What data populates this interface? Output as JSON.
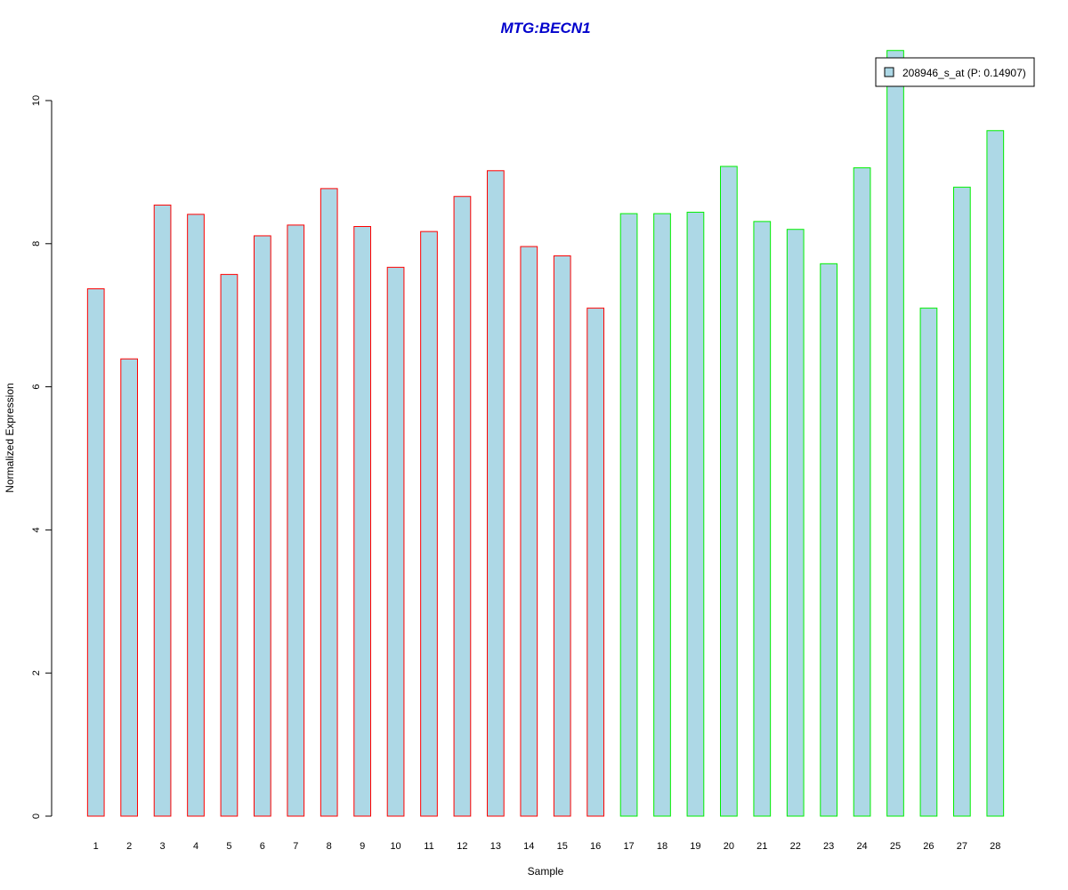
{
  "chart_data": {
    "type": "bar",
    "title": "MTG:BECN1",
    "xlabel": "Sample",
    "ylabel": "Normalized Expression",
    "categories": [
      "1",
      "2",
      "3",
      "4",
      "5",
      "6",
      "7",
      "8",
      "9",
      "10",
      "11",
      "12",
      "13",
      "14",
      "15",
      "16",
      "17",
      "18",
      "19",
      "20",
      "21",
      "22",
      "23",
      "24",
      "25",
      "26",
      "27",
      "28"
    ],
    "series": [
      {
        "name": "208946_s_at (P: 0.14907)",
        "values": [
          7.37,
          6.39,
          8.54,
          8.41,
          7.57,
          8.11,
          8.26,
          8.77,
          8.24,
          7.67,
          8.17,
          8.66,
          9.02,
          7.96,
          7.83,
          7.1,
          8.42,
          8.42,
          8.44,
          9.08,
          8.31,
          8.2,
          7.72,
          9.06,
          10.7,
          7.1,
          8.79,
          9.58
        ]
      }
    ],
    "groups": [
      {
        "from": 1,
        "to": 16,
        "border_color": "#ff0000"
      },
      {
        "from": 17,
        "to": 28,
        "border_color": "#00ee00"
      }
    ],
    "ylim": [
      0,
      10
    ],
    "yticks": [
      0,
      2,
      4,
      6,
      8,
      10
    ],
    "grid": false,
    "legend_position": "top-right",
    "colors": {
      "bar_fill": "#add8e6",
      "title": "#0000cc",
      "axis": "#000000"
    }
  }
}
